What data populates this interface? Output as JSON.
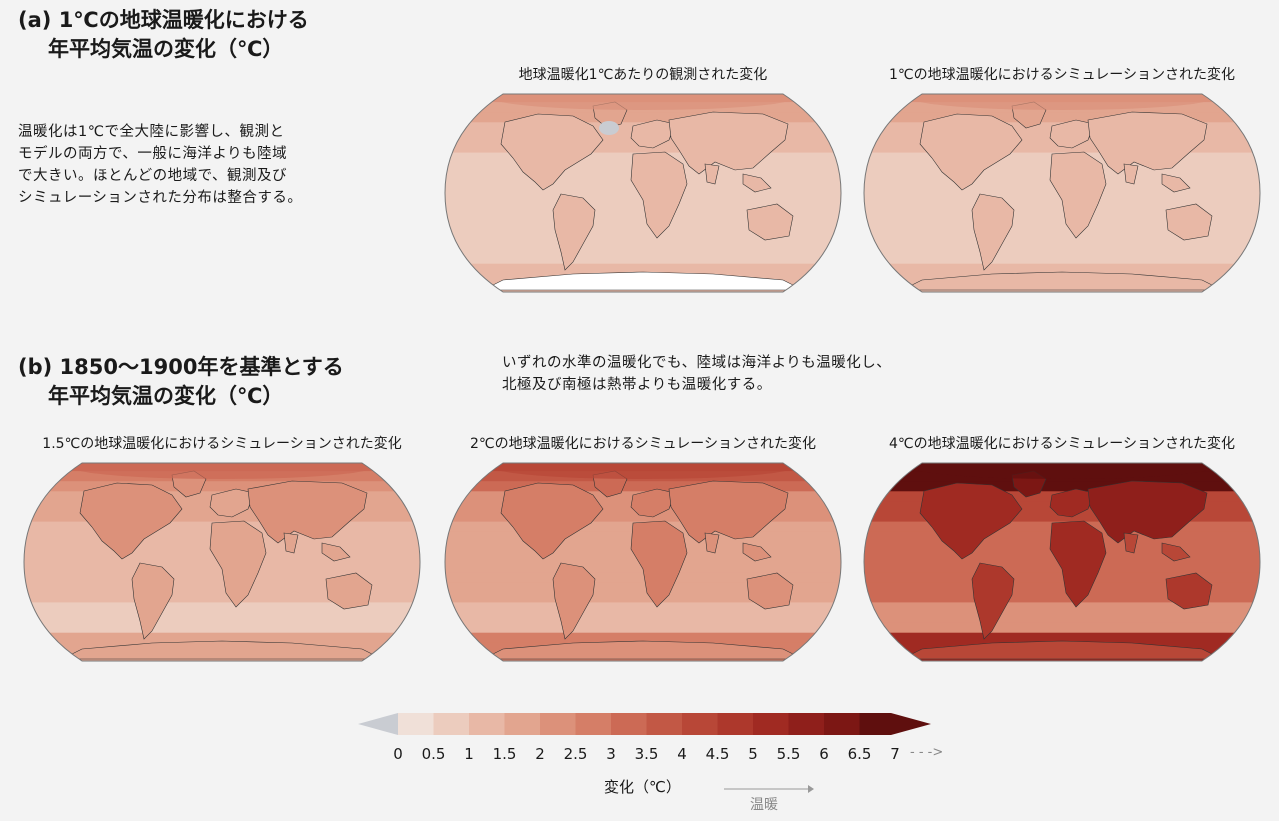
{
  "section_a": {
    "label": "(a)",
    "title_line1": "1℃の地球温暖化における",
    "title_line2": "年平均気温の変化（℃）",
    "description": [
      "温暖化は1℃で全大陸に影響し、観測と",
      "モデルの両方で、一般に海洋よりも陸域",
      "で大きい。ほとんどの地域で、観測及び",
      "シミュレーションされた分布は整合する。"
    ],
    "maps": [
      {
        "title": "地球温暖化1℃あたりの観測された変化",
        "level": 1.0,
        "observed": true
      },
      {
        "title": "1℃の地球温暖化におけるシミュレーションされた変化",
        "level": 1.0,
        "observed": false
      }
    ]
  },
  "section_b": {
    "label": "(b)",
    "title_line1": "1850〜1900年を基準とする",
    "title_line2": "年平均気温の変化（℃）",
    "description": [
      "いずれの水準の温暖化でも、陸域は海洋よりも温暖化し、",
      "北極及び南極は熱帯よりも温暖化する。"
    ],
    "maps": [
      {
        "title": "1.5℃の地球温暖化におけるシミュレーションされた変化",
        "level": 1.5
      },
      {
        "title": "2℃の地球温暖化におけるシミュレーションされた変化",
        "level": 2.0
      },
      {
        "title": "4℃の地球温暖化におけるシミュレーションされた変化",
        "level": 4.0
      }
    ]
  },
  "legend": {
    "ticks": [
      "0",
      "0.5",
      "1",
      "1.5",
      "2",
      "2.5",
      "3",
      "3.5",
      "4",
      "4.5",
      "5",
      "5.5",
      "6",
      "6.5",
      "7"
    ],
    "arrow_right": "- - ->",
    "label": "変化（℃）",
    "warming_label": "温暖",
    "colors": [
      "#f0e0d8",
      "#ecccbe",
      "#e8b8a6",
      "#e2a58f",
      "#dc917a",
      "#d57e67",
      "#cc6a55",
      "#c25845",
      "#b84737",
      "#ad382c",
      "#a02a22",
      "#8f1f1b",
      "#7c1714",
      "#5f0f0e"
    ],
    "low_color": "#c9ccd2"
  }
}
